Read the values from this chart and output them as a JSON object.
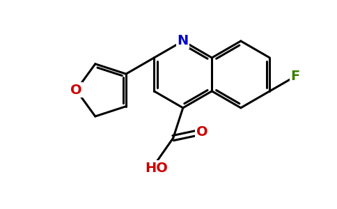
{
  "bg_color": "#ffffff",
  "bond_color": "#000000",
  "N_color": "#0000cc",
  "O_color": "#cc0000",
  "F_color": "#3a7d00",
  "bond_lw": 2.2,
  "font_size": 14,
  "C8a": [
    6.3,
    4.5
  ],
  "bl": 1.0,
  "xlim": [
    0,
    10
  ],
  "ylim": [
    0,
    6.2
  ],
  "figsize": [
    4.84,
    3.0
  ],
  "dpi": 100
}
